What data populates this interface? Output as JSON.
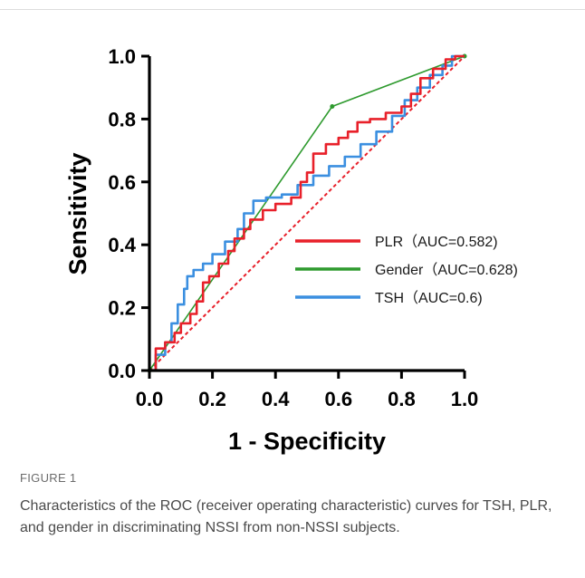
{
  "figure": {
    "label": "FIGURE 1",
    "caption": "Characteristics of the ROC (receiver operating characteristic) curves for TSH, PLR, and gender in discriminating NSSI from non-NSSI subjects."
  },
  "colors": {
    "plr": "#e8202a",
    "gender": "#2e9a2e",
    "tsh": "#3b8fe0",
    "reference": "#e8202a",
    "axis": "#000000"
  },
  "chart_data": {
    "type": "line",
    "xlabel": "1 - Specificity",
    "ylabel": "Sensitivity",
    "xlim": [
      0,
      1
    ],
    "ylim": [
      0,
      1
    ],
    "xticks": [
      "0.0",
      "0.2",
      "0.4",
      "0.6",
      "0.8",
      "1.0"
    ],
    "yticks": [
      "0.0",
      "0.2",
      "0.4",
      "0.6",
      "0.8",
      "1.0"
    ],
    "grid": false,
    "legend_position": "center-right",
    "reference_line": {
      "x": [
        0,
        1
      ],
      "y": [
        0,
        1
      ],
      "style": "dotted"
    },
    "series": [
      {
        "name": "PLR（AUC=0.582)",
        "color_key": "plr",
        "x": [
          0.0,
          0.02,
          0.02,
          0.05,
          0.05,
          0.08,
          0.08,
          0.1,
          0.1,
          0.13,
          0.13,
          0.15,
          0.15,
          0.17,
          0.17,
          0.19,
          0.19,
          0.22,
          0.22,
          0.25,
          0.25,
          0.27,
          0.27,
          0.3,
          0.3,
          0.32,
          0.32,
          0.36,
          0.36,
          0.4,
          0.4,
          0.45,
          0.45,
          0.48,
          0.48,
          0.5,
          0.5,
          0.52,
          0.52,
          0.56,
          0.56,
          0.6,
          0.6,
          0.63,
          0.63,
          0.66,
          0.66,
          0.7,
          0.7,
          0.75,
          0.75,
          0.8,
          0.8,
          0.83,
          0.83,
          0.86,
          0.86,
          0.9,
          0.9,
          0.94,
          0.94,
          0.97,
          0.97,
          1.0
        ],
        "y": [
          0.0,
          0.0,
          0.07,
          0.07,
          0.09,
          0.09,
          0.12,
          0.12,
          0.15,
          0.15,
          0.18,
          0.18,
          0.22,
          0.22,
          0.28,
          0.28,
          0.3,
          0.3,
          0.34,
          0.34,
          0.38,
          0.38,
          0.42,
          0.42,
          0.45,
          0.45,
          0.48,
          0.48,
          0.51,
          0.51,
          0.53,
          0.53,
          0.55,
          0.55,
          0.6,
          0.6,
          0.63,
          0.63,
          0.69,
          0.69,
          0.72,
          0.72,
          0.74,
          0.74,
          0.76,
          0.76,
          0.79,
          0.79,
          0.8,
          0.8,
          0.82,
          0.82,
          0.84,
          0.84,
          0.88,
          0.88,
          0.93,
          0.93,
          0.96,
          0.96,
          0.99,
          0.99,
          1.0,
          1.0
        ]
      },
      {
        "name": "Gender（AUC=0.628)",
        "color_key": "gender",
        "x": [
          0.0,
          0.58,
          1.0
        ],
        "y": [
          0.0,
          0.84,
          1.0
        ]
      },
      {
        "name": "TSH（AUC=0.6)",
        "color_key": "tsh",
        "x": [
          0.0,
          0.02,
          0.02,
          0.05,
          0.05,
          0.07,
          0.07,
          0.09,
          0.09,
          0.11,
          0.11,
          0.12,
          0.12,
          0.14,
          0.14,
          0.17,
          0.17,
          0.2,
          0.2,
          0.24,
          0.24,
          0.28,
          0.28,
          0.3,
          0.3,
          0.33,
          0.33,
          0.37,
          0.37,
          0.42,
          0.42,
          0.47,
          0.47,
          0.52,
          0.52,
          0.57,
          0.57,
          0.62,
          0.62,
          0.67,
          0.67,
          0.72,
          0.72,
          0.77,
          0.77,
          0.81,
          0.81,
          0.85,
          0.85,
          0.89,
          0.89,
          0.93,
          0.93,
          0.96,
          0.96,
          1.0
        ],
        "y": [
          0.0,
          0.0,
          0.05,
          0.05,
          0.09,
          0.09,
          0.15,
          0.15,
          0.21,
          0.21,
          0.26,
          0.26,
          0.3,
          0.3,
          0.32,
          0.32,
          0.34,
          0.34,
          0.37,
          0.37,
          0.41,
          0.41,
          0.45,
          0.45,
          0.5,
          0.5,
          0.54,
          0.54,
          0.55,
          0.55,
          0.56,
          0.56,
          0.59,
          0.59,
          0.62,
          0.62,
          0.65,
          0.65,
          0.68,
          0.68,
          0.72,
          0.72,
          0.76,
          0.76,
          0.81,
          0.81,
          0.86,
          0.86,
          0.9,
          0.9,
          0.94,
          0.94,
          0.97,
          0.97,
          1.0,
          1.0
        ]
      }
    ]
  }
}
